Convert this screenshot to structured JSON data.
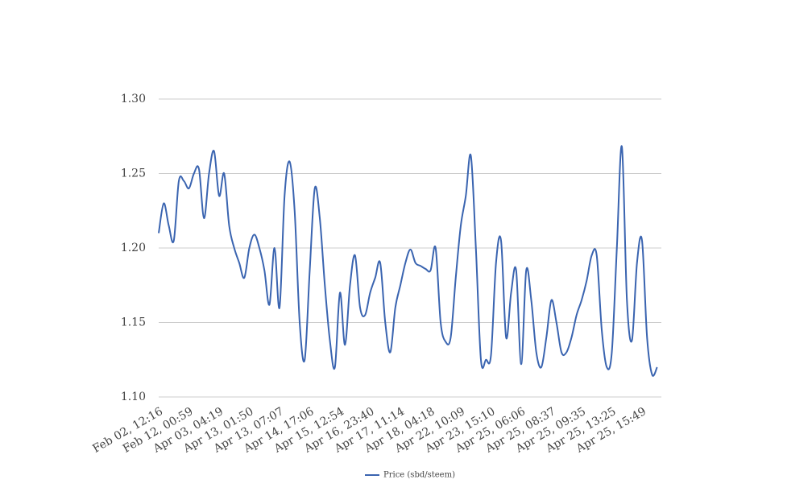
{
  "chart_data": {
    "type": "line",
    "categories": [
      "Feb 02, 12:16",
      null,
      null,
      null,
      null,
      null,
      "Feb 12, 00:59",
      null,
      null,
      null,
      null,
      null,
      "Apr 03, 04:19",
      null,
      null,
      null,
      null,
      null,
      "Apr 13, 01:50",
      null,
      null,
      null,
      null,
      null,
      "Apr 13, 07:07",
      null,
      null,
      null,
      null,
      null,
      "Apr 14, 17:06",
      null,
      null,
      null,
      null,
      null,
      "Apr 15, 12:54",
      null,
      null,
      null,
      null,
      null,
      "Apr 16, 23:40",
      null,
      null,
      null,
      null,
      null,
      "Apr 17, 11:14",
      null,
      null,
      null,
      null,
      null,
      "Apr 18, 04:18",
      null,
      null,
      null,
      null,
      null,
      "Apr 22, 10:09",
      null,
      null,
      null,
      null,
      null,
      "Apr 23, 15:10",
      null,
      null,
      null,
      null,
      null,
      "Apr 25, 06:06",
      null,
      null,
      null,
      null,
      null,
      "Apr 25, 08:37",
      null,
      null,
      null,
      null,
      null,
      "Apr 25, 09:35",
      null,
      null,
      null,
      null,
      null,
      "Apr 25, 13:25",
      null,
      null,
      null,
      null,
      null,
      "Apr 25, 15:49",
      null,
      null,
      null
    ],
    "series": [
      {
        "name": "Price (sbd/steem)",
        "color": "#3a64b0",
        "values": [
          1.21,
          1.23,
          1.215,
          1.205,
          1.245,
          1.245,
          1.24,
          1.25,
          1.253,
          1.22,
          1.25,
          1.265,
          1.235,
          1.25,
          1.215,
          1.2,
          1.19,
          1.18,
          1.2,
          1.209,
          1.2,
          1.185,
          1.162,
          1.2,
          1.16,
          1.235,
          1.258,
          1.225,
          1.15,
          1.125,
          1.185,
          1.24,
          1.22,
          1.175,
          1.138,
          1.12,
          1.17,
          1.135,
          1.175,
          1.195,
          1.16,
          1.155,
          1.17,
          1.18,
          1.19,
          1.15,
          1.13,
          1.16,
          1.175,
          1.19,
          1.199,
          1.19,
          1.188,
          1.186,
          1.185,
          1.2,
          1.15,
          1.137,
          1.14,
          1.18,
          1.215,
          1.235,
          1.262,
          1.2,
          1.125,
          1.125,
          1.128,
          1.19,
          1.205,
          1.14,
          1.17,
          1.185,
          1.122,
          1.185,
          1.165,
          1.13,
          1.12,
          1.14,
          1.165,
          1.15,
          1.13,
          1.13,
          1.14,
          1.155,
          1.165,
          1.178,
          1.195,
          1.195,
          1.145,
          1.12,
          1.13,
          1.2,
          1.268,
          1.165,
          1.138,
          1.19,
          1.205,
          1.14,
          1.115,
          1.12
        ]
      }
    ],
    "ylim": [
      1.1,
      1.3
    ],
    "yticks": [
      {
        "value": 1.1,
        "label": "1.10"
      },
      {
        "value": 1.15,
        "label": "1.15"
      },
      {
        "value": 1.2,
        "label": "1.20"
      },
      {
        "value": 1.25,
        "label": "1.25"
      },
      {
        "value": 1.3,
        "label": "1.30"
      }
    ],
    "grid": true,
    "legend": "bottom"
  }
}
